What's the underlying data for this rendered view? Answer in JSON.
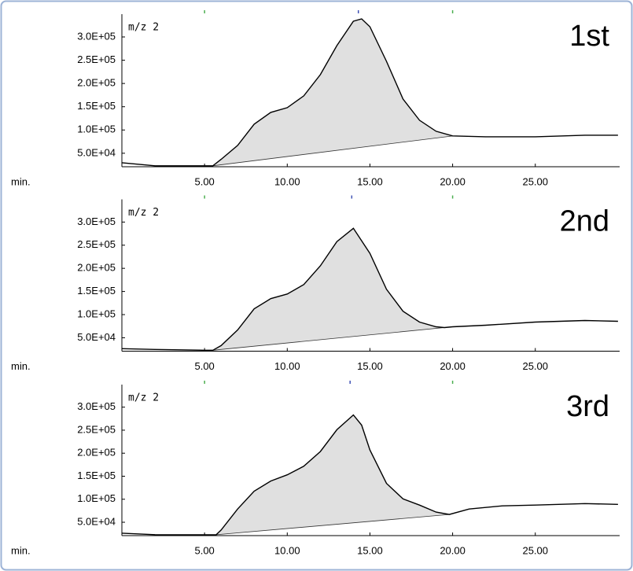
{
  "chart_data": [
    {
      "type": "line",
      "label": "1st",
      "title": "m/z 2",
      "x_label": "min.",
      "color": "#000000",
      "fill": "#e0e0e0",
      "x": [
        0,
        2,
        5,
        5.5,
        6,
        7,
        8,
        9,
        10,
        11,
        12,
        13,
        14,
        14.5,
        15,
        16,
        17,
        18,
        19,
        20,
        22,
        25,
        28,
        30
      ],
      "values": [
        29700,
        23000,
        23000,
        23000,
        36900,
        66900,
        112500,
        137800,
        148000,
        173300,
        218900,
        281400,
        333800,
        338800,
        322000,
        247600,
        166500,
        120900,
        97300,
        87200,
        85500,
        85500,
        88800,
        88800
      ],
      "baseline": {
        "x": [
          5.5,
          20
        ],
        "values": [
          23000,
          87200
        ]
      },
      "markers": [
        {
          "value": 5.0,
          "color": "#4caf50"
        },
        {
          "value": 14.3,
          "color": "#3f51b5"
        },
        {
          "value": 20.0,
          "color": "#4caf50"
        }
      ],
      "xlim": [
        0,
        30.1
      ],
      "ylim": [
        21000,
        349000
      ],
      "xticks": [
        {
          "value": 5,
          "label": "5.00"
        },
        {
          "value": 10,
          "label": "10.00"
        },
        {
          "value": 15,
          "label": "15.00"
        },
        {
          "value": 20,
          "label": "20.00"
        },
        {
          "value": 25,
          "label": "25.00"
        }
      ],
      "yticks": [
        {
          "value": 50000,
          "label": "5.0E+04"
        },
        {
          "value": 100000,
          "label": "1.0E+05"
        },
        {
          "value": 150000,
          "label": "1.5E+05"
        },
        {
          "value": 200000,
          "label": "2.0E+05"
        },
        {
          "value": 250000,
          "label": "2.5E+05"
        },
        {
          "value": 300000,
          "label": "3.0E+05"
        }
      ]
    },
    {
      "type": "line",
      "label": "2nd",
      "title": "m/z 2",
      "x_label": "min.",
      "color": "#000000",
      "fill": "#e0e0e0",
      "x": [
        0,
        2,
        5,
        5.5,
        6,
        7,
        8,
        9,
        10,
        11,
        12,
        13,
        14,
        15,
        16,
        17,
        18,
        19,
        19.5,
        20,
        22,
        25,
        28,
        30
      ],
      "values": [
        26400,
        24700,
        23000,
        23000,
        33100,
        66900,
        112500,
        134500,
        144600,
        164900,
        205400,
        257700,
        286500,
        232400,
        154700,
        107400,
        83800,
        73600,
        72000,
        73600,
        77000,
        83800,
        87200,
        85500
      ],
      "baseline": {
        "x": [
          5.5,
          19.5
        ],
        "values": [
          23000,
          72000
        ]
      },
      "markers": [
        {
          "value": 5.0,
          "color": "#4caf50"
        },
        {
          "value": 13.9,
          "color": "#3f51b5"
        },
        {
          "value": 20.0,
          "color": "#4caf50"
        }
      ],
      "xlim": [
        0,
        30.1
      ],
      "ylim": [
        21000,
        349000
      ],
      "xticks": [
        {
          "value": 5,
          "label": "5.00"
        },
        {
          "value": 10,
          "label": "10.00"
        },
        {
          "value": 15,
          "label": "15.00"
        },
        {
          "value": 20,
          "label": "20.00"
        },
        {
          "value": 25,
          "label": "25.00"
        }
      ],
      "yticks": [
        {
          "value": 50000,
          "label": "5.0E+04"
        },
        {
          "value": 100000,
          "label": "1.0E+05"
        },
        {
          "value": 150000,
          "label": "1.5E+05"
        },
        {
          "value": 200000,
          "label": "2.0E+05"
        },
        {
          "value": 250000,
          "label": "2.5E+05"
        },
        {
          "value": 300000,
          "label": "3.0E+05"
        }
      ]
    },
    {
      "type": "line",
      "label": "3rd",
      "title": "m/z 2",
      "x_label": "min.",
      "color": "#000000",
      "fill": "#e0e0e0",
      "x": [
        0,
        2,
        5,
        5.7,
        6,
        7,
        8,
        9,
        10,
        11,
        12,
        13,
        14,
        14.5,
        15,
        16,
        17,
        18,
        19,
        19.8,
        21,
        23,
        25,
        28,
        30
      ],
      "values": [
        26300,
        23000,
        22900,
        22900,
        33100,
        78700,
        117600,
        139500,
        153000,
        171600,
        203700,
        251000,
        283100,
        261100,
        207100,
        134500,
        100700,
        87200,
        72000,
        66900,
        78700,
        85500,
        87200,
        90500,
        88800
      ],
      "baseline": {
        "x": [
          5.7,
          19.8
        ],
        "values": [
          22900,
          66900
        ]
      },
      "markers": [
        {
          "value": 5.0,
          "color": "#4caf50"
        },
        {
          "value": 13.8,
          "color": "#3f51b5"
        },
        {
          "value": 20.0,
          "color": "#4caf50"
        }
      ],
      "xlim": [
        0,
        30.1
      ],
      "ylim": [
        21000,
        349000
      ],
      "xticks": [
        {
          "value": 5,
          "label": "5.00"
        },
        {
          "value": 10,
          "label": "10.00"
        },
        {
          "value": 15,
          "label": "15.00"
        },
        {
          "value": 20,
          "label": "20.00"
        },
        {
          "value": 25,
          "label": "25.00"
        }
      ],
      "yticks": [
        {
          "value": 50000,
          "label": "5.0E+04"
        },
        {
          "value": 100000,
          "label": "1.0E+05"
        },
        {
          "value": 150000,
          "label": "1.5E+05"
        },
        {
          "value": 200000,
          "label": "2.0E+05"
        },
        {
          "value": 250000,
          "label": "2.5E+05"
        },
        {
          "value": 300000,
          "label": "3.0E+05"
        }
      ]
    }
  ]
}
